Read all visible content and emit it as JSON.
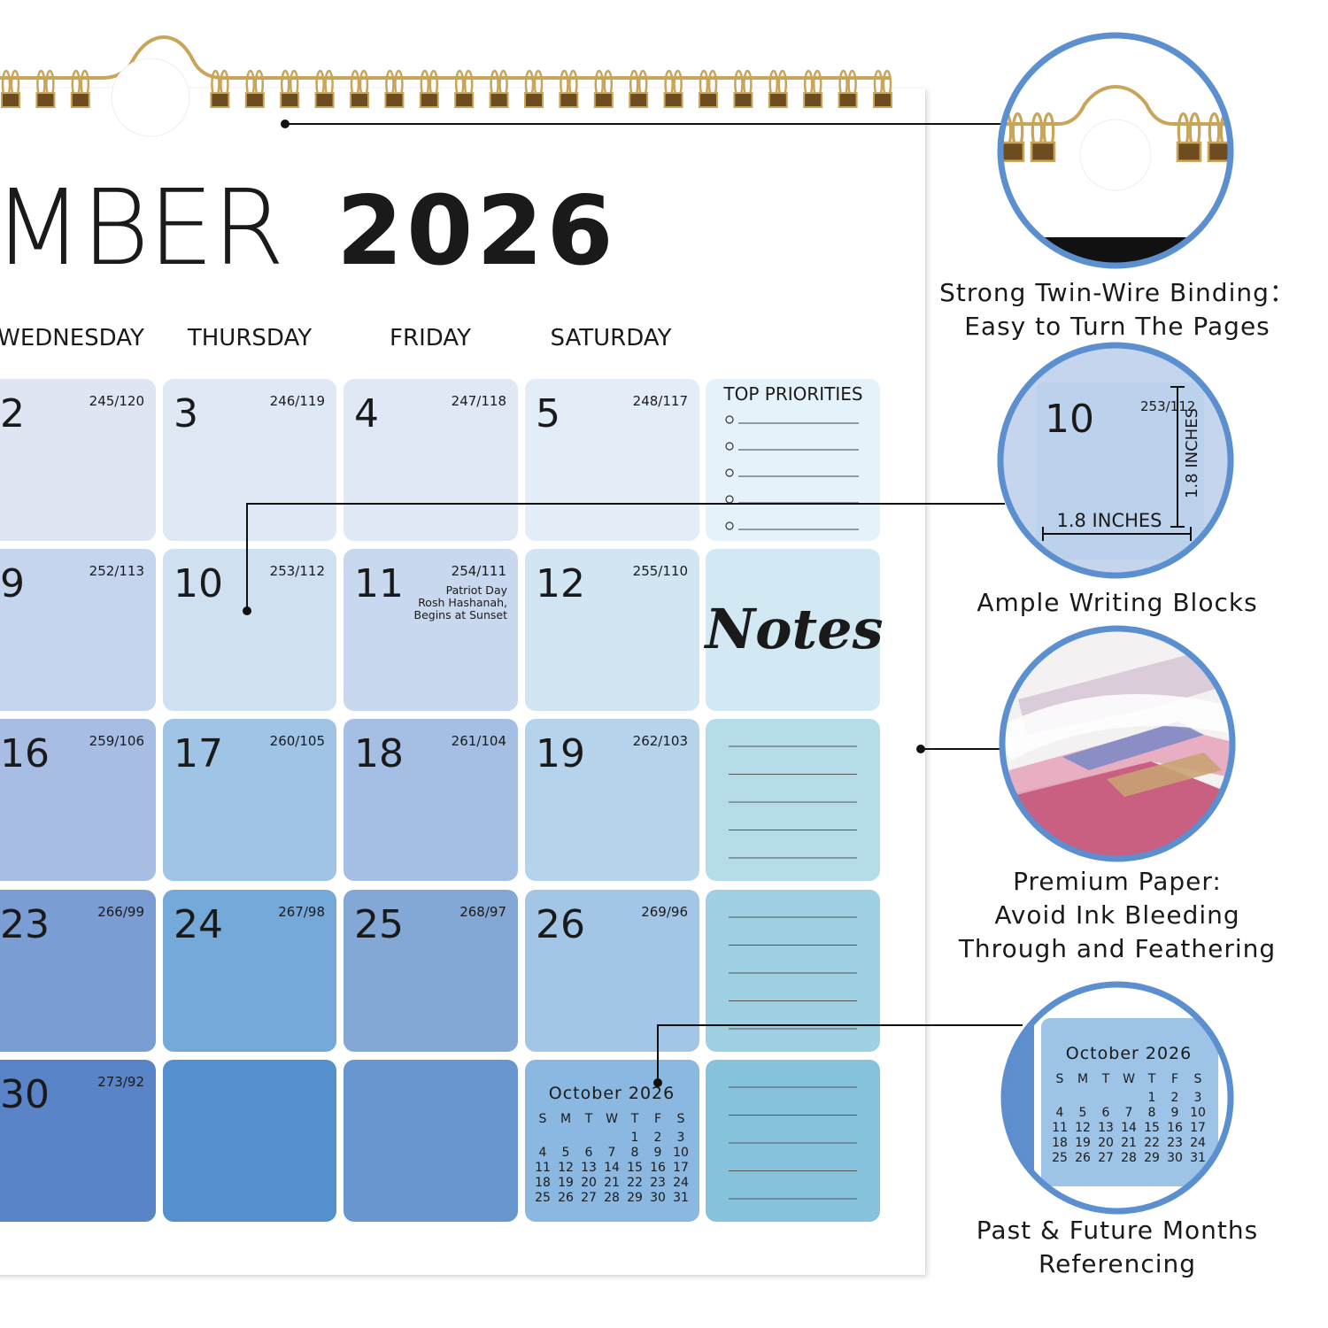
{
  "header": {
    "month": "MBER",
    "year": "2026"
  },
  "weekdays": [
    "WEDNESDAY",
    "THURSDAY",
    "FRIDAY",
    "SATURDAY"
  ],
  "weeks": [
    {
      "days": [
        {
          "day": 2,
          "day_of_year": "245/120"
        },
        {
          "day": 3,
          "day_of_year": "246/119"
        },
        {
          "day": 4,
          "day_of_year": "247/118"
        },
        {
          "day": 5,
          "day_of_year": "248/117"
        }
      ]
    },
    {
      "days": [
        {
          "day": 9,
          "day_of_year": "252/113"
        },
        {
          "day": 10,
          "day_of_year": "253/112"
        },
        {
          "day": 11,
          "day_of_year": "254/111",
          "holiday": [
            "Patriot Day",
            "Rosh Hashanah,",
            "Begins at Sunset"
          ]
        },
        {
          "day": 12,
          "day_of_year": "255/110"
        }
      ]
    },
    {
      "days": [
        {
          "day": 16,
          "day_of_year": "259/106"
        },
        {
          "day": 17,
          "day_of_year": "260/105"
        },
        {
          "day": 18,
          "day_of_year": "261/104"
        },
        {
          "day": 19,
          "day_of_year": "262/103"
        }
      ]
    },
    {
      "days": [
        {
          "day": 23,
          "day_of_year": "266/99"
        },
        {
          "day": 24,
          "day_of_year": "267/98"
        },
        {
          "day": 25,
          "day_of_year": "268/97"
        },
        {
          "day": 26,
          "day_of_year": "269/96"
        }
      ]
    },
    {
      "days": [
        {
          "day": 30,
          "day_of_year": "273/92"
        }
      ]
    }
  ],
  "sidebar": {
    "priorities_title": "TOP PRIORITIES",
    "notes_title": "Notes"
  },
  "mini_calendar": {
    "title": "October  2026",
    "weekdays": [
      "S",
      "M",
      "T",
      "W",
      "T",
      "F",
      "S"
    ],
    "weeks": [
      [
        null,
        null,
        null,
        null,
        1,
        2,
        3
      ],
      [
        4,
        5,
        6,
        7,
        8,
        9,
        10
      ],
      [
        11,
        12,
        13,
        14,
        15,
        16,
        17
      ],
      [
        18,
        19,
        20,
        21,
        22,
        23,
        24
      ],
      [
        25,
        26,
        27,
        28,
        29,
        30,
        31
      ]
    ]
  },
  "callouts": [
    {
      "lines": [
        "Strong Twin-Wire Binding：",
        "Easy to Turn The Pages"
      ]
    },
    {
      "lines": [
        "Ample Writing Blocks"
      ],
      "zoom": {
        "day": 10,
        "day_of_year": "253/112",
        "width": "1.8 INCHES",
        "height": "1.8 INCHES"
      }
    },
    {
      "lines": [
        "Premium Paper:",
        "Avoid Ink Bleeding",
        "Through and Feathering"
      ]
    },
    {
      "lines": [
        "Past & Future Months",
        "Referencing"
      ]
    }
  ]
}
